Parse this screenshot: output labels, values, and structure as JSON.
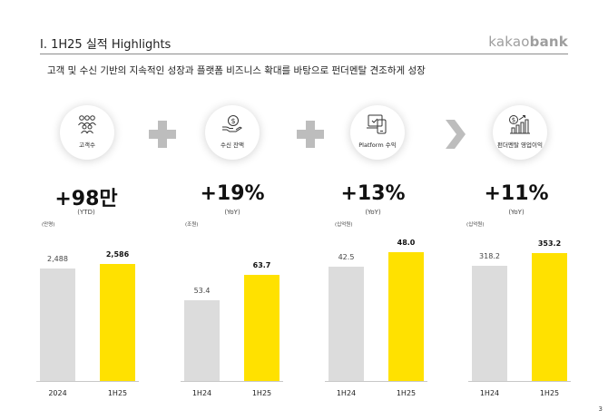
{
  "header": {
    "title": "I. 1H25 실적 Highlights",
    "logo_light": "kakao",
    "logo_bold": "bank"
  },
  "subtitle": "고객 및 수신 기반의 지속적인 성장과 플랫폼 비즈니스 확대를 바탕으로 펀더멘탈 견조하게 성장",
  "icons": [
    {
      "name": "people-icon",
      "label": "고객수"
    },
    {
      "name": "money-hand-icon",
      "label": "수신 잔액"
    },
    {
      "name": "platform-icon",
      "label": "Platform 수익"
    },
    {
      "name": "growth-chart-icon",
      "label": "펀더멘탈 영업이익"
    }
  ],
  "colors": {
    "highlight": "#FFE100",
    "base": "#DCDCDC",
    "connector": "#BDBDBD"
  },
  "page_number": "3",
  "chart_data": [
    {
      "type": "bar",
      "headline": "+98만",
      "sub": "(YTD)",
      "unit": "(만명)",
      "categories": [
        "2024",
        "1H25"
      ],
      "values": [
        2488,
        2586
      ],
      "value_labels": [
        "2,488",
        "2,586"
      ],
      "ylim": [
        0,
        3200
      ]
    },
    {
      "type": "bar",
      "headline": "+19%",
      "sub": "(YoY)",
      "unit": "(조원)",
      "categories": [
        "1H24",
        "1H25"
      ],
      "values": [
        53.4,
        63.7
      ],
      "value_labels": [
        "53.4",
        "63.7"
      ],
      "ylim": [
        20,
        80
      ]
    },
    {
      "type": "bar",
      "headline": "+13%",
      "sub": "(YoY)",
      "unit": "(십억원)",
      "categories": [
        "1H24",
        "1H25"
      ],
      "values": [
        42.5,
        48.0
      ],
      "value_labels": [
        "42.5",
        "48.0"
      ],
      "ylim": [
        0,
        54
      ]
    },
    {
      "type": "bar",
      "headline": "+11%",
      "sub": "(YoY)",
      "unit": "(십억원)",
      "categories": [
        "1H24",
        "1H25"
      ],
      "values": [
        318.2,
        353.2
      ],
      "value_labels": [
        "318.2",
        "353.2"
      ],
      "ylim": [
        0,
        400
      ]
    }
  ]
}
